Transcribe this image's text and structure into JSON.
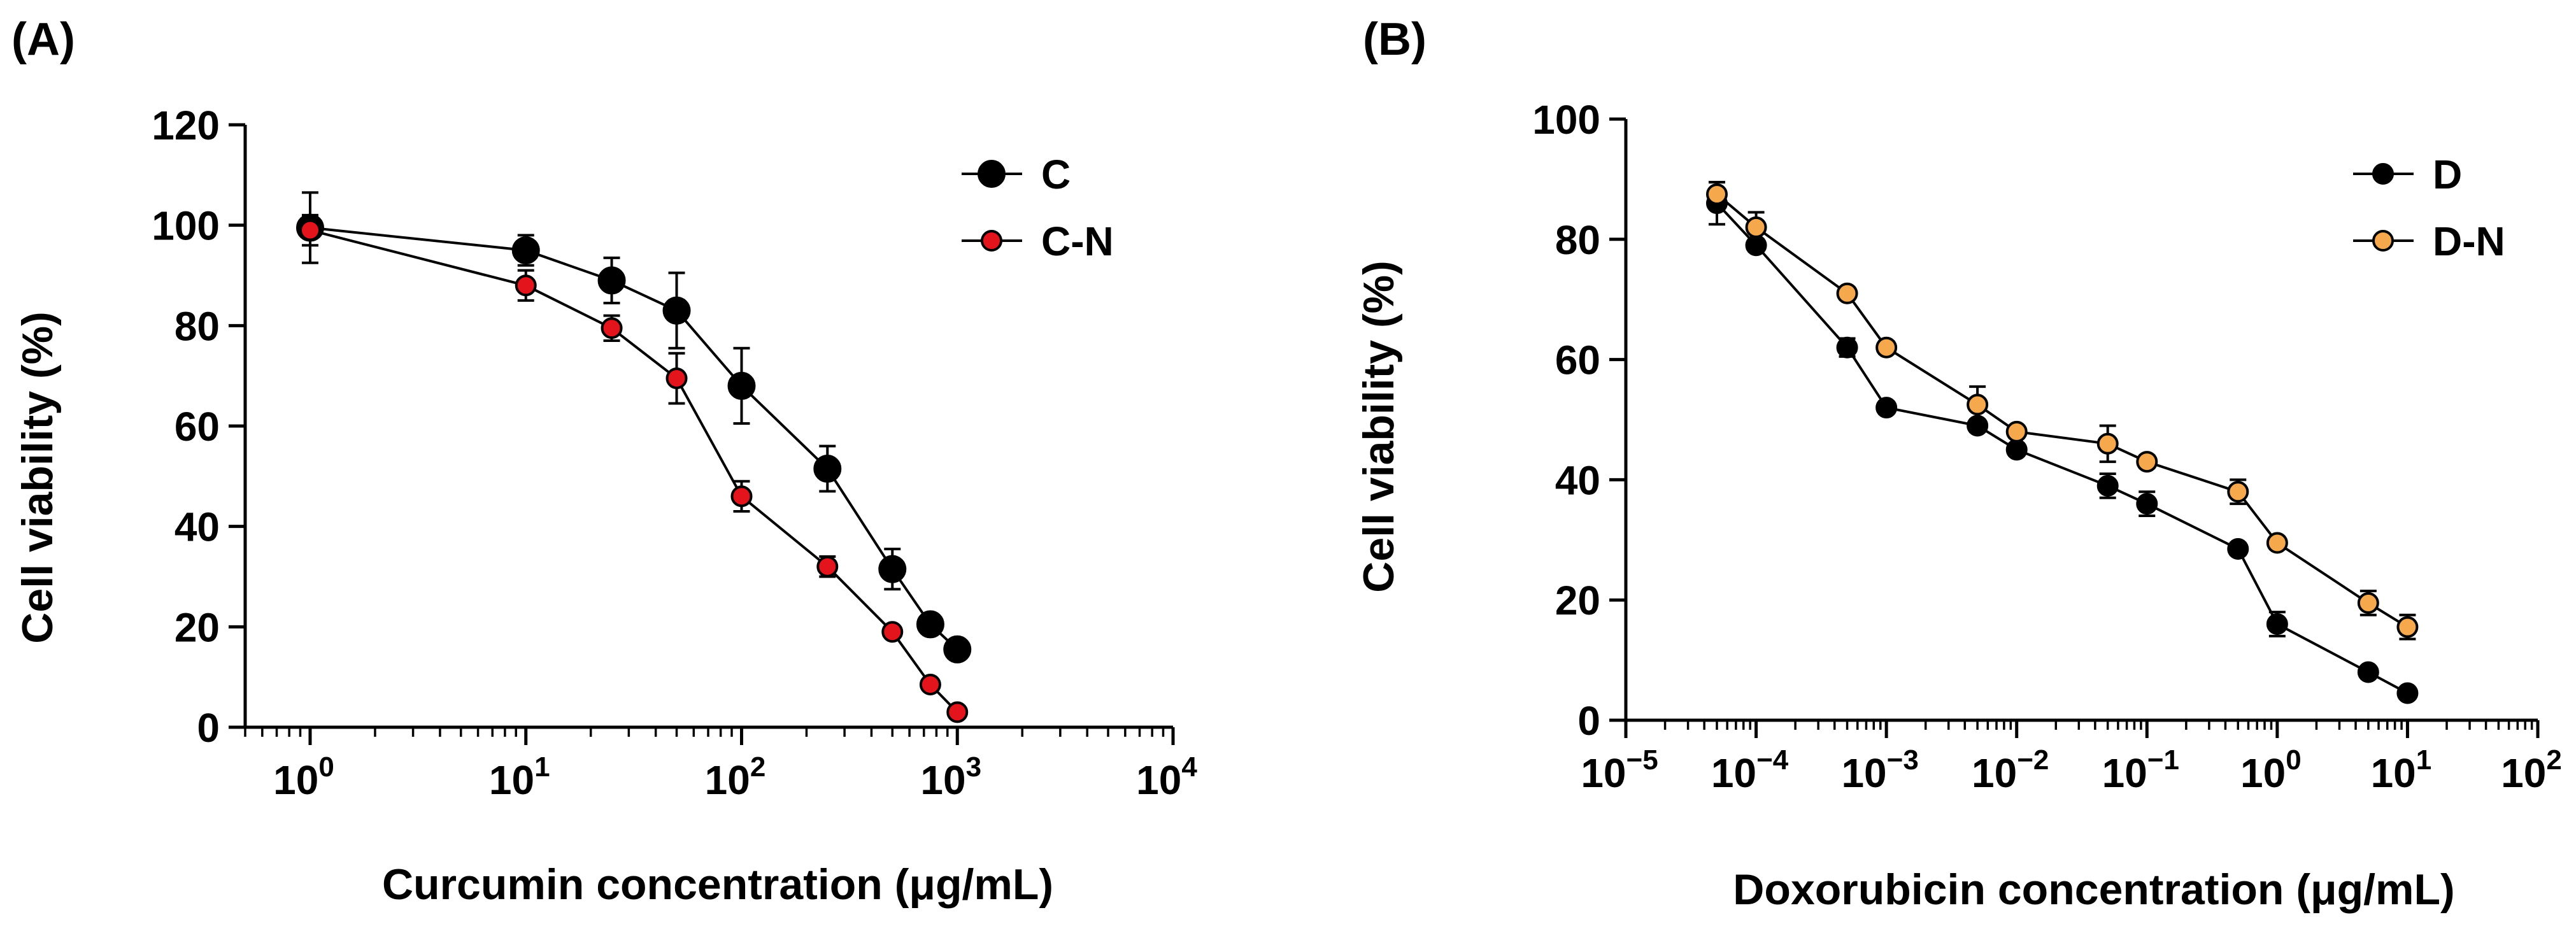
{
  "chart_data": [
    {
      "panel": "(A)",
      "type": "line",
      "xscale": "log",
      "xlabel": "Curcumin concentration (μg/mL)",
      "ylabel": "Cell viability (%)",
      "xlim": [
        0.5,
        10000
      ],
      "ylim": [
        0,
        120
      ],
      "yticks": [
        0,
        20,
        40,
        60,
        80,
        100,
        120
      ],
      "xtick_exponents": [
        0,
        1,
        2,
        3,
        4
      ],
      "legend_position": "top-right",
      "series": [
        {
          "name": "C",
          "color": "#000000",
          "x": [
            1,
            10,
            25,
            50,
            100,
            250,
            500,
            750,
            1000
          ],
          "y": [
            99.5,
            95,
            89,
            83,
            68,
            51.5,
            31.5,
            20.5,
            15.5
          ],
          "err": [
            7,
            3,
            4.5,
            7.5,
            7.5,
            4.5,
            4,
            1,
            1
          ]
        },
        {
          "name": "C-N",
          "color": "#e3141b",
          "x": [
            1,
            10,
            25,
            50,
            100,
            250,
            500,
            750,
            1000
          ],
          "y": [
            99,
            88,
            79.5,
            69.5,
            46,
            32,
            19,
            8.5,
            3
          ],
          "err": [
            3,
            3,
            2.5,
            5,
            3,
            2,
            1,
            1,
            0.5
          ]
        }
      ]
    },
    {
      "panel": "(B)",
      "type": "line",
      "xscale": "log",
      "xlabel": "Doxorubicin concentration (μg/mL)",
      "ylabel": "Cell viability (%)",
      "xlim": [
        1e-05,
        100
      ],
      "ylim": [
        0,
        100
      ],
      "yticks": [
        0,
        20,
        40,
        60,
        80,
        100
      ],
      "xtick_exponents": [
        -5,
        -4,
        -3,
        -2,
        -1,
        0,
        1,
        2
      ],
      "legend_position": "top-right",
      "series": [
        {
          "name": "D",
          "color": "#000000",
          "x": [
            5e-05,
            0.0001,
            0.0005,
            0.001,
            0.005,
            0.01,
            0.05,
            0.1,
            0.5,
            1,
            5,
            10
          ],
          "y": [
            86,
            79,
            62,
            52,
            49,
            45,
            39,
            36,
            28.5,
            16,
            8,
            4.5
          ],
          "err": [
            3.5,
            1,
            1.5,
            1,
            1,
            1,
            2,
            2,
            1,
            2,
            0.5,
            0.5
          ]
        },
        {
          "name": "D-N",
          "color": "#f5a84c",
          "x": [
            5e-05,
            0.0001,
            0.0005,
            0.001,
            0.005,
            0.01,
            0.05,
            0.1,
            0.5,
            1,
            5,
            10
          ],
          "y": [
            87.5,
            82,
            71,
            62,
            52.5,
            48,
            46,
            43,
            38,
            29.5,
            19.5,
            15.5
          ],
          "err": [
            2,
            2.5,
            1,
            1,
            3,
            1,
            3,
            1,
            2,
            1,
            2,
            2
          ]
        }
      ]
    }
  ]
}
